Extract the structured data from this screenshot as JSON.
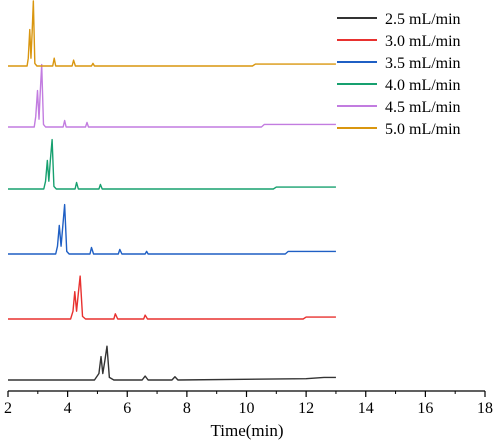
{
  "chart_data": {
    "type": "line",
    "title": "",
    "xlabel": "Time(min)",
    "ylabel": "",
    "xlim": [
      2,
      18
    ],
    "xticks": [
      2,
      4,
      6,
      8,
      10,
      12,
      14,
      16,
      18
    ],
    "grid": false,
    "legend_position": "top-right",
    "series": [
      {
        "name": "2.5 mL/min",
        "color": "#333333",
        "baseline": 0.0,
        "x": [
          2.0,
          4.9,
          5.05,
          5.12,
          5.18,
          5.25,
          5.32,
          5.4,
          5.55,
          6.5,
          6.6,
          6.7,
          7.5,
          7.6,
          7.7,
          12.0,
          12.6,
          13.0
        ],
        "y": [
          0.0,
          0.0,
          0.05,
          0.18,
          0.05,
          0.15,
          0.26,
          0.02,
          0.0,
          0.0,
          0.03,
          0.0,
          0.0,
          0.025,
          0.0,
          0.01,
          0.02,
          0.02
        ]
      },
      {
        "name": "3.0 mL/min",
        "color": "#e8312f",
        "baseline": 0.0,
        "x": [
          2.0,
          4.1,
          4.18,
          4.24,
          4.3,
          4.36,
          4.42,
          4.5,
          4.6,
          5.55,
          5.6,
          5.68,
          6.55,
          6.6,
          6.68,
          11.9,
          12.0,
          13.0
        ],
        "y": [
          0.0,
          0.0,
          0.06,
          0.21,
          0.06,
          0.2,
          0.33,
          0.02,
          0.0,
          0.0,
          0.04,
          0.0,
          0.0,
          0.03,
          0.0,
          0.0,
          0.015,
          0.015
        ]
      },
      {
        "name": "3.5 mL/min",
        "color": "#1f5fc4",
        "baseline": 0.0,
        "x": [
          2.0,
          3.6,
          3.66,
          3.72,
          3.78,
          3.84,
          3.9,
          3.97,
          4.05,
          4.75,
          4.8,
          4.87,
          5.7,
          5.75,
          5.82,
          6.6,
          6.65,
          6.7,
          11.3,
          11.4,
          13.0
        ],
        "y": [
          0.0,
          0.0,
          0.06,
          0.22,
          0.06,
          0.22,
          0.38,
          0.02,
          0.0,
          0.0,
          0.05,
          0.0,
          0.0,
          0.035,
          0.0,
          0.0,
          0.02,
          0.0,
          0.0,
          0.02,
          0.02
        ]
      },
      {
        "name": "4.0 mL/min",
        "color": "#17a06f",
        "baseline": 0.0,
        "x": [
          2.0,
          3.2,
          3.26,
          3.32,
          3.37,
          3.42,
          3.48,
          3.54,
          3.62,
          4.25,
          4.3,
          4.36,
          5.05,
          5.1,
          5.16,
          10.9,
          11.0,
          13.0
        ],
        "y": [
          0.0,
          0.0,
          0.06,
          0.22,
          0.06,
          0.22,
          0.38,
          0.02,
          0.0,
          0.0,
          0.05,
          0.0,
          0.0,
          0.035,
          0.0,
          0.0,
          0.015,
          0.015
        ]
      },
      {
        "name": "4.5 mL/min",
        "color": "#c27ce0",
        "baseline": 0.0,
        "x": [
          2.0,
          2.88,
          2.93,
          2.99,
          3.04,
          3.08,
          3.13,
          3.19,
          3.26,
          3.85,
          3.9,
          3.95,
          4.6,
          4.65,
          4.7,
          10.5,
          10.6,
          13.0
        ],
        "y": [
          0.0,
          0.0,
          0.08,
          0.28,
          0.06,
          0.26,
          0.48,
          0.02,
          0.0,
          0.0,
          0.05,
          0.0,
          0.0,
          0.035,
          0.0,
          0.0,
          0.02,
          0.02
        ]
      },
      {
        "name": "5.0 mL/min",
        "color": "#d9960f",
        "baseline": 0.0,
        "x": [
          2.0,
          2.64,
          2.68,
          2.73,
          2.77,
          2.81,
          2.85,
          2.9,
          2.97,
          3.5,
          3.55,
          3.6,
          4.15,
          4.2,
          4.26,
          4.8,
          4.85,
          4.9,
          10.2,
          10.3,
          13.0
        ],
        "y": [
          0.0,
          0.0,
          0.06,
          0.28,
          0.06,
          0.26,
          0.5,
          0.02,
          0.0,
          0.0,
          0.06,
          0.0,
          0.0,
          0.045,
          0.0,
          0.0,
          0.02,
          0.0,
          0.0,
          0.015,
          0.015
        ]
      }
    ]
  }
}
